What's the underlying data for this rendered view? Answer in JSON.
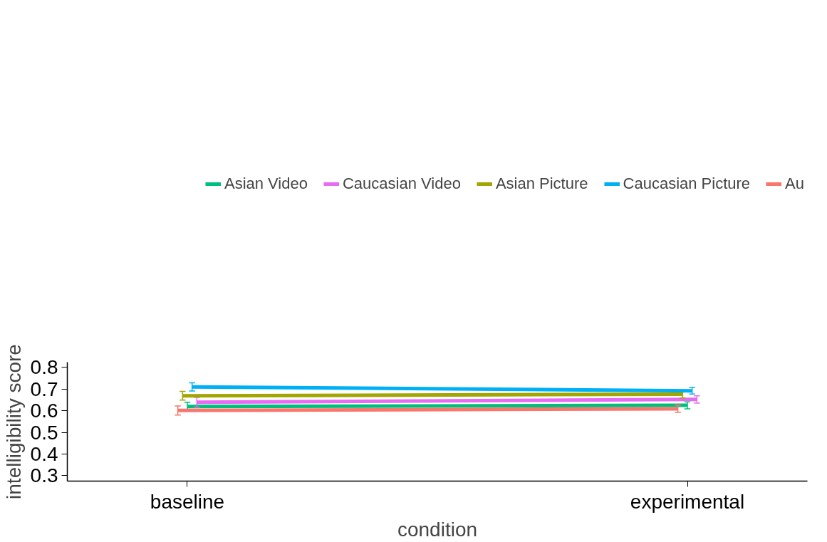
{
  "chart_data": {
    "type": "line",
    "xlabel": "condition",
    "ylabel": "intelligibility score",
    "categories": [
      "baseline",
      "experimental"
    ],
    "series": [
      {
        "name": "Asian Video",
        "color": "#00bf7d",
        "values": [
          0.619,
          0.625
        ],
        "errors": [
          0.02,
          0.016
        ]
      },
      {
        "name": "Caucasian Video",
        "color": "#e76bf3",
        "values": [
          0.639,
          0.652
        ],
        "errors": [
          0.022,
          0.017
        ]
      },
      {
        "name": "Asian Picture",
        "color": "#a3a500",
        "values": [
          0.669,
          0.676
        ],
        "errors": [
          0.02,
          0.017
        ]
      },
      {
        "name": "Caucasian Picture",
        "color": "#00b0f6",
        "values": [
          0.71,
          0.692
        ],
        "errors": [
          0.019,
          0.015
        ]
      },
      {
        "name": "Au",
        "color": "#f8766d",
        "values": [
          0.601,
          0.609
        ],
        "errors": [
          0.021,
          0.017
        ]
      }
    ],
    "ylim": [
      0.275,
      0.824
    ],
    "yticks": [
      0.3,
      0.4,
      0.5,
      0.6,
      0.7,
      0.8
    ],
    "grid": false,
    "legend": "top",
    "marker": "none",
    "line_style": "solid"
  }
}
